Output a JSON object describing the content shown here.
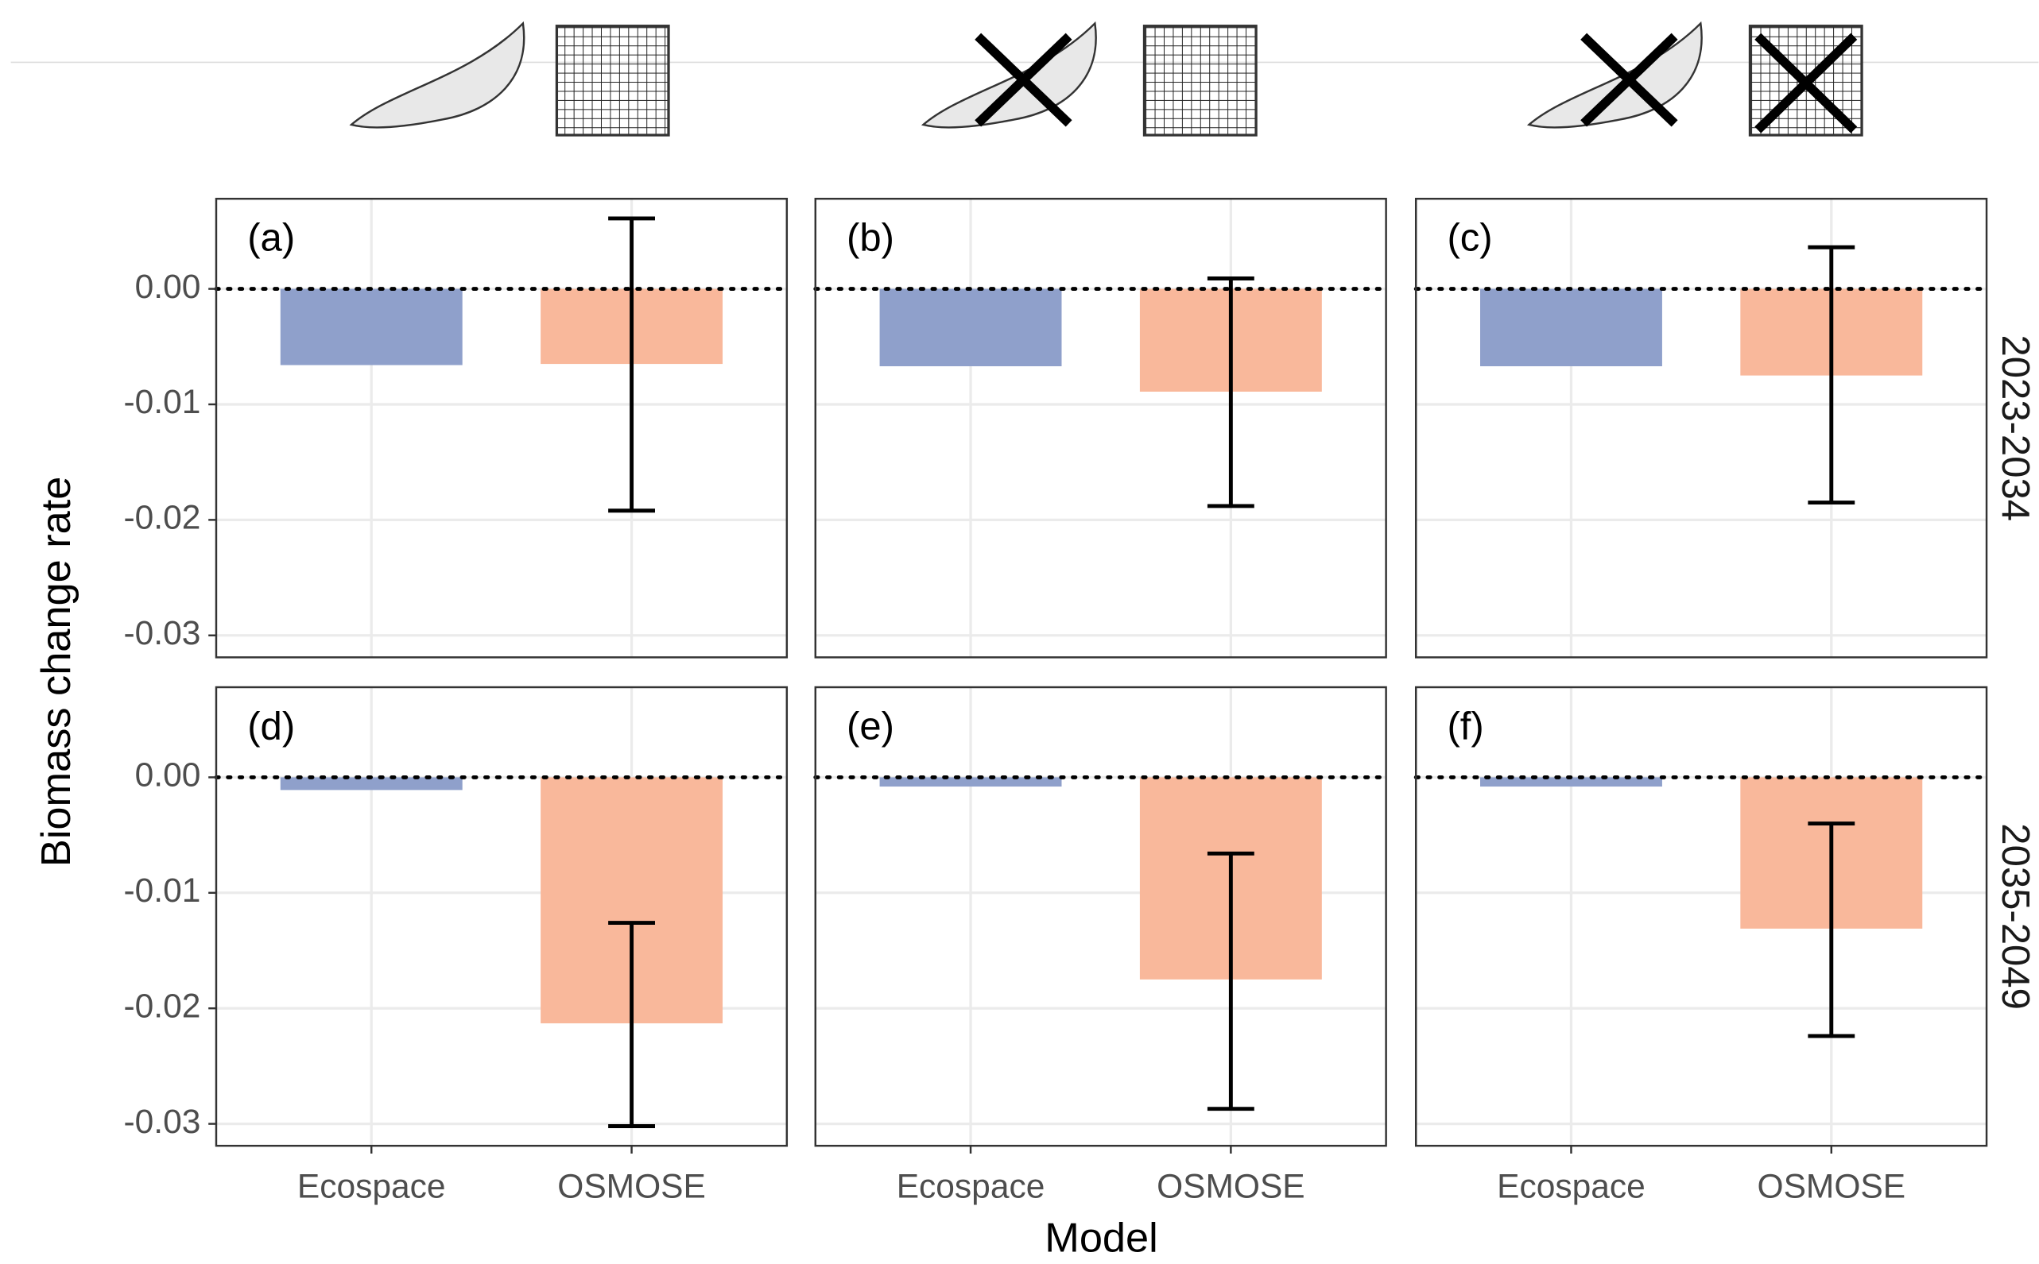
{
  "chart_data": {
    "type": "bar",
    "y_label": "Biomass change rate",
    "x_label": "Model",
    "categories": [
      "Ecospace",
      "OSMOSE"
    ],
    "colors": [
      "#8fa0cb",
      "#f9b89b"
    ],
    "row_labels": [
      "2023-2034",
      "2035-2049"
    ],
    "ylim": [
      -0.0319,
      0.0078
    ],
    "yticks": [
      {
        "value": -0.03,
        "label": "-0.03"
      },
      {
        "value": -0.02,
        "label": "-0.02"
      },
      {
        "value": -0.01,
        "label": "-0.01"
      },
      {
        "value": 0,
        "label": "0.00"
      }
    ],
    "reference_line": 0,
    "grid": true,
    "panels": [
      {
        "label": "(a)",
        "row": 0,
        "col": 0,
        "values": [
          -0.0066,
          -0.0065
        ],
        "error_low": [
          null,
          -0.0192
        ],
        "error_high": [
          null,
          0.0061
        ]
      },
      {
        "label": "(b)",
        "row": 0,
        "col": 1,
        "values": [
          -0.0067,
          -0.0089
        ],
        "error_low": [
          null,
          -0.0188
        ],
        "error_high": [
          null,
          0.0009
        ]
      },
      {
        "label": "(c)",
        "row": 0,
        "col": 2,
        "values": [
          -0.0067,
          -0.0075
        ],
        "error_low": [
          null,
          -0.0185
        ],
        "error_high": [
          null,
          0.0036
        ]
      },
      {
        "label": "(d)",
        "row": 1,
        "col": 0,
        "values": [
          -0.0011,
          -0.0213
        ],
        "error_low": [
          null,
          -0.0302
        ],
        "error_high": [
          null,
          -0.0126
        ]
      },
      {
        "label": "(e)",
        "row": 1,
        "col": 1,
        "values": [
          -0.0008,
          -0.0175
        ],
        "error_low": [
          null,
          -0.0287
        ],
        "error_high": [
          null,
          -0.0066
        ]
      },
      {
        "label": "(f)",
        "row": 1,
        "col": 2,
        "values": [
          -0.0008,
          -0.0131
        ],
        "error_low": [
          null,
          -0.0224
        ],
        "error_high": [
          null,
          -0.004
        ]
      }
    ]
  }
}
